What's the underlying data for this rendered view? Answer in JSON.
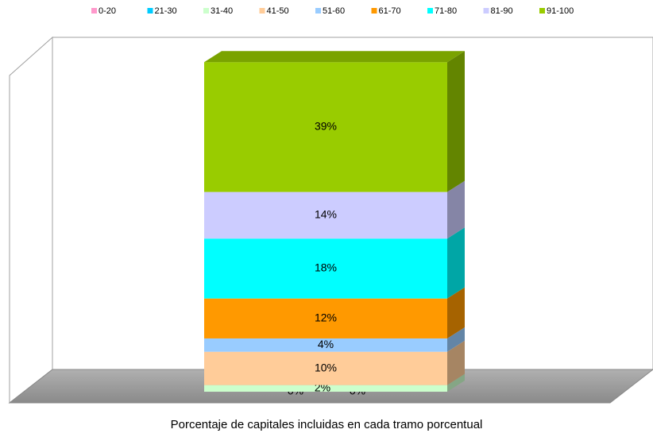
{
  "chart_data": {
    "type": "stacked_bar_3d",
    "categories": [
      "Porcentaje de capitales incluidas en cada tramo porcentual"
    ],
    "series": [
      {
        "name": "0-20",
        "color": "#ff99cc",
        "values": [
          0
        ],
        "value_labels": [
          "0%"
        ]
      },
      {
        "name": "21-30",
        "color": "#00ccff",
        "values": [
          0
        ],
        "value_labels": [
          "0%"
        ]
      },
      {
        "name": "31-40",
        "color": "#ccffcc",
        "values": [
          2
        ],
        "value_labels": [
          "2%"
        ]
      },
      {
        "name": "41-50",
        "color": "#ffcc99",
        "values": [
          10
        ],
        "value_labels": [
          "10%"
        ]
      },
      {
        "name": "51-60",
        "color": "#99ccff",
        "values": [
          4
        ],
        "value_labels": [
          "4%"
        ]
      },
      {
        "name": "61-70",
        "color": "#ff9900",
        "values": [
          12
        ],
        "value_labels": [
          "12%"
        ]
      },
      {
        "name": "71-80",
        "color": "#00ffff",
        "values": [
          18
        ],
        "value_labels": [
          "18%"
        ]
      },
      {
        "name": "81-90",
        "color": "#ccccff",
        "values": [
          14
        ],
        "value_labels": [
          "14%"
        ]
      },
      {
        "name": "91-100",
        "color": "#99cc00",
        "values": [
          39
        ],
        "value_labels": [
          "39%"
        ]
      }
    ],
    "legend": "top"
  }
}
